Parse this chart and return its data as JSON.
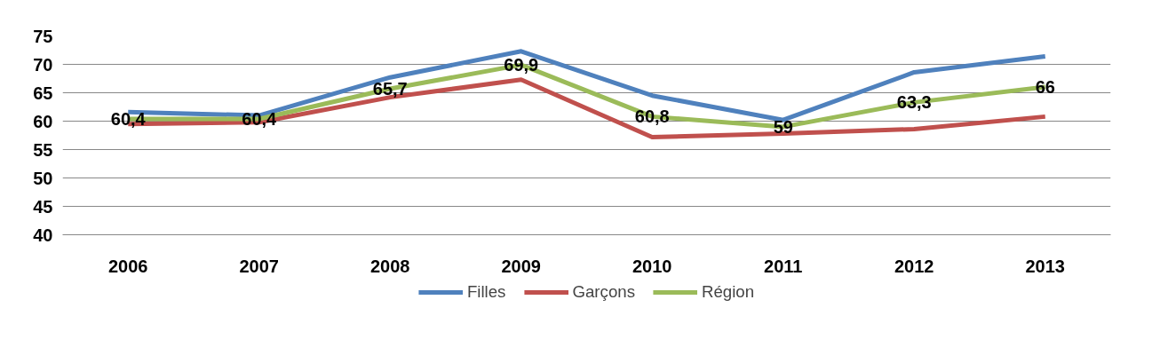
{
  "chart_data": {
    "type": "line",
    "categories": [
      "2006",
      "2007",
      "2008",
      "2009",
      "2010",
      "2011",
      "2012",
      "2013"
    ],
    "ylim": [
      40,
      75
    ],
    "yticks": [
      40,
      45,
      50,
      55,
      60,
      65,
      70,
      75
    ],
    "grid": "y",
    "legend": "bottom",
    "series": [
      {
        "name": "Filles",
        "color": "#4f81bd",
        "values": [
          61.6,
          61.0,
          67.7,
          72.3,
          64.5,
          60.2,
          68.6,
          71.4
        ]
      },
      {
        "name": "Garçons",
        "color": "#c0504d",
        "values": [
          59.5,
          59.8,
          64.2,
          67.3,
          57.2,
          57.8,
          58.6,
          60.8
        ]
      },
      {
        "name": "Région",
        "color": "#9bbb59",
        "values": [
          60.4,
          60.4,
          65.7,
          69.9,
          60.8,
          59,
          63.3,
          66
        ],
        "value_labels": [
          "60,4",
          "60,4",
          "65,7",
          "69,9",
          "60,8",
          "59",
          "63,3",
          "66"
        ]
      }
    ]
  }
}
